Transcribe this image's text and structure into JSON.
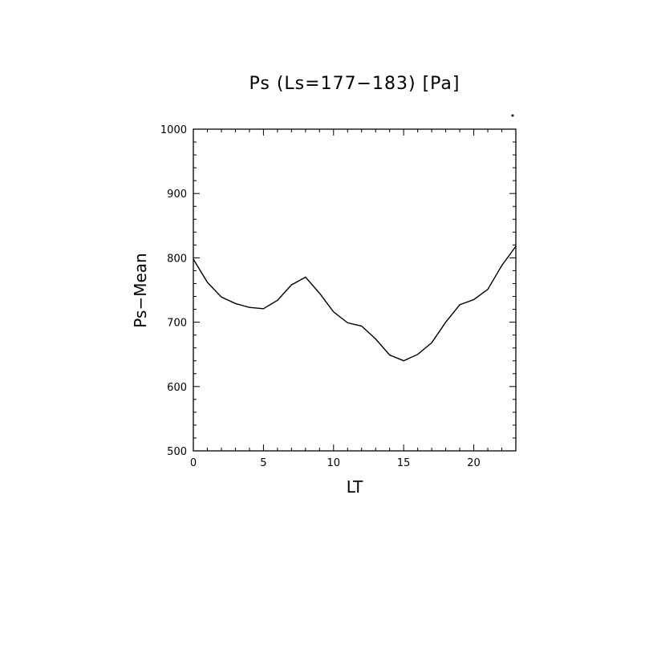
{
  "chart_data": {
    "type": "line",
    "title": "Ps (Ls=177−183) [Pa]",
    "xlabel": "LT",
    "ylabel": "Ps−Mean",
    "xlim": [
      0,
      23
    ],
    "ylim": [
      500,
      1000
    ],
    "x_major_ticks": [
      0,
      5,
      10,
      15,
      20
    ],
    "x_tick_labels": [
      "0",
      "5",
      "10",
      "15",
      "20"
    ],
    "y_major_ticks": [
      500,
      600,
      700,
      800,
      900,
      1000
    ],
    "y_tick_labels": [
      "500",
      "600",
      "700",
      "800",
      "900",
      "1000"
    ],
    "grid": false,
    "series": [
      {
        "x": [
          0,
          1,
          2,
          3,
          4,
          5,
          6,
          7,
          8,
          9,
          10,
          11,
          12,
          13,
          14,
          15,
          16,
          17,
          18,
          19,
          20,
          21,
          22,
          23
        ],
        "values": [
          798,
          762,
          739,
          729,
          723,
          721,
          734,
          758,
          770,
          745,
          716,
          699,
          694,
          674,
          649,
          640,
          650,
          668,
          700,
          727,
          735,
          751,
          788,
          818
        ]
      }
    ]
  }
}
